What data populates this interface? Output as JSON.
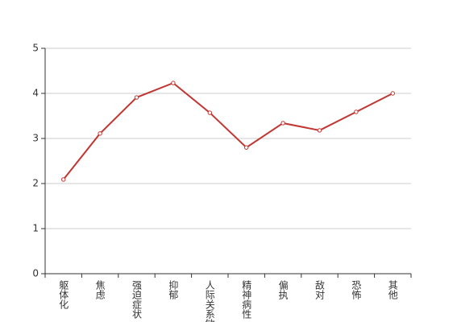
{
  "chart_data": {
    "type": "line",
    "categories": [
      "躯体化",
      "焦虑",
      "强迫症状",
      "抑郁",
      "人际关系敏感",
      "精神病性",
      "偏执",
      "敌对",
      "恐怖",
      "其他"
    ],
    "series": [
      {
        "color": "#c23531",
        "values": [
          2.09,
          3.11,
          3.91,
          4.23,
          3.57,
          2.8,
          3.34,
          3.18,
          3.59,
          4.0
        ]
      }
    ],
    "ylim": [
      0,
      5
    ],
    "yticks": [
      0,
      1,
      2,
      3,
      4,
      5
    ],
    "grid": true
  }
}
